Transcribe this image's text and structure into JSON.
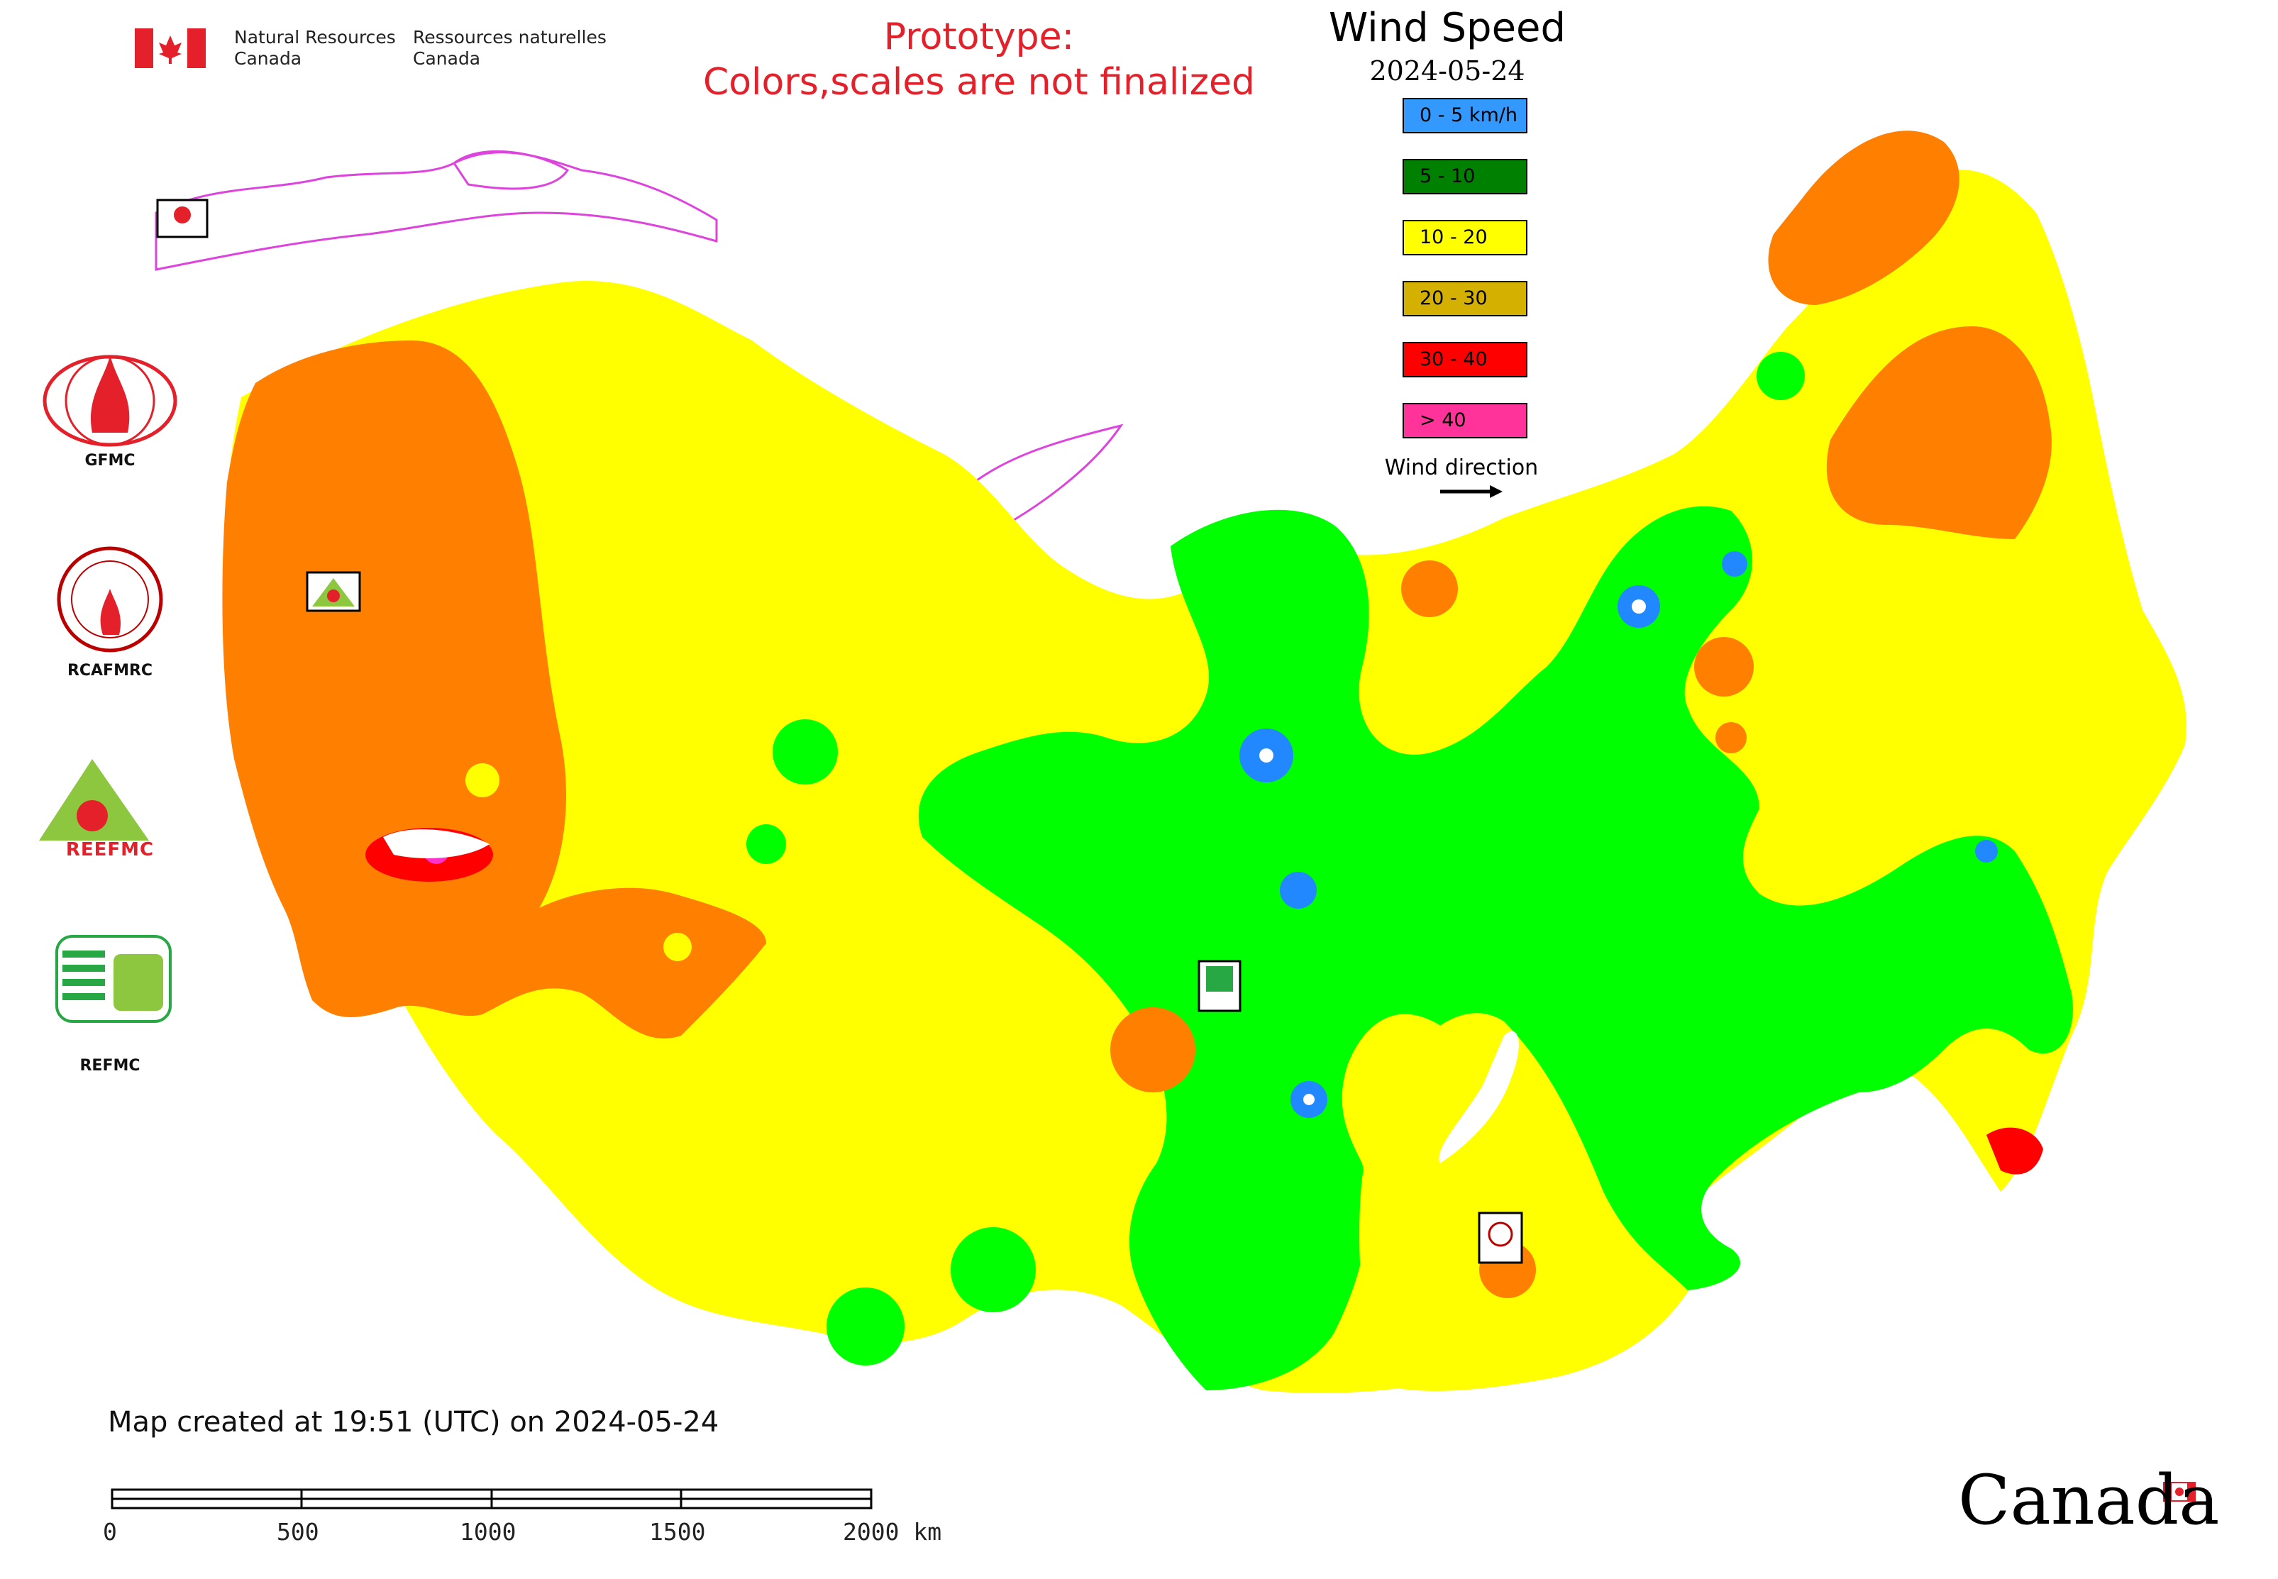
{
  "header": {
    "agency_en": [
      "Natural Resources",
      "Canada"
    ],
    "agency_fr": [
      "Ressources naturelles",
      "Canada"
    ],
    "prototype_note": [
      "Prototype:",
      "Colors,scales are not finalized"
    ]
  },
  "legend": {
    "title": "Wind Speed",
    "date": "2024-05-24",
    "items": [
      {
        "label": "0 - 5 km/h",
        "color": "#3399ff"
      },
      {
        "label": "5 - 10",
        "color": "#008000"
      },
      {
        "label": "10 - 20",
        "color": "#ffff00"
      },
      {
        "label": "20 - 30",
        "color": "#d4b000"
      },
      {
        "label": "30 - 40",
        "color": "#ff0000"
      },
      {
        "label": "> 40",
        "color": "#ff3399"
      }
    ],
    "wind_direction_label": "Wind direction"
  },
  "logos": [
    {
      "name": "GFMC"
    },
    {
      "name": "RCAFMRC"
    },
    {
      "name": "REEFMC"
    },
    {
      "name": "REFMC"
    }
  ],
  "footer": {
    "created": "Map created at 19:51 (UTC) on 2024-05-24",
    "scale_ticks": [
      "0",
      "500",
      "1000",
      "1500",
      "2000 km"
    ],
    "wordmark": "Canada"
  },
  "map_colors": {
    "orange": "#ff8000",
    "yellow": "#ffff00",
    "green": "#00ff00",
    "blue": "#2288ff",
    "red": "#ff0000",
    "magenta": "#ff33cc",
    "border": "#dd44dd"
  }
}
